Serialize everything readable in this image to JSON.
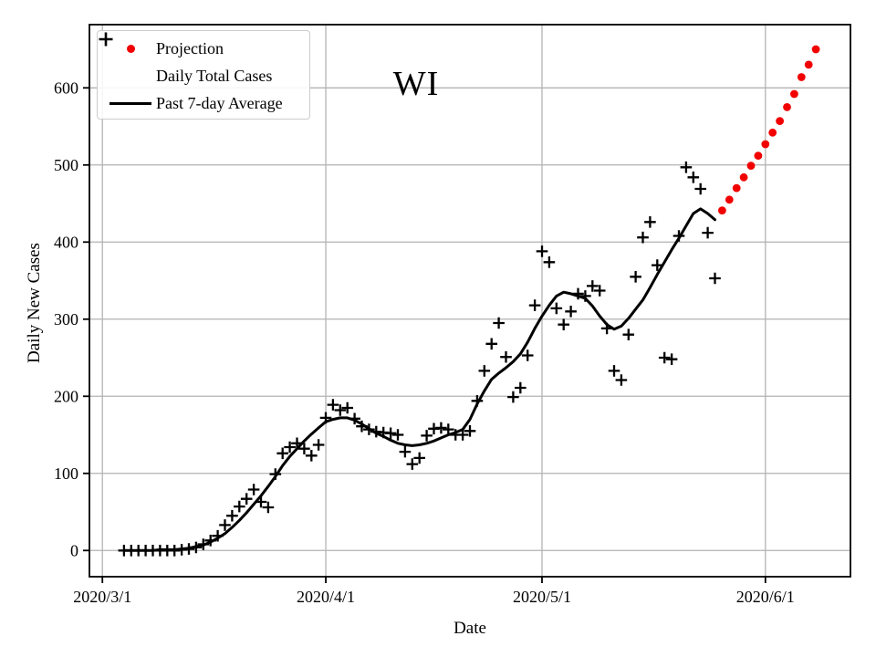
{
  "title": "WI",
  "axes": {
    "xlabel": "Date",
    "ylabel": "Daily New Cases"
  },
  "legend": {
    "items": [
      {
        "label": "Projection",
        "marker": "dot"
      },
      {
        "label": "Daily Total Cases",
        "marker": "plus"
      },
      {
        "label": "Past 7-day Average",
        "marker": "line"
      }
    ]
  },
  "colors": {
    "projection_red": "#f20000",
    "series_black": "#000000",
    "grid": "#b3b3b3",
    "frame": "#000000",
    "legend_border": "#cccccc"
  },
  "chart_data": {
    "type": "scatter",
    "title": "WI",
    "xlabel": "Date",
    "ylabel": "Daily New Cases",
    "x_unit": "days since 2020/3/1",
    "grid": true,
    "legend_position": "upper left",
    "xlim": [
      -1.8,
      103.8
    ],
    "ylim": [
      -34,
      682
    ],
    "x_ticks": [
      {
        "day": 0,
        "label": "2020/3/1"
      },
      {
        "day": 31,
        "label": "2020/4/1"
      },
      {
        "day": 61,
        "label": "2020/5/1"
      },
      {
        "day": 92,
        "label": "2020/6/1"
      }
    ],
    "y_ticks": [
      0,
      100,
      200,
      300,
      400,
      500,
      600
    ],
    "series": [
      {
        "name": "Projection",
        "type": "scatter",
        "marker": "dot",
        "color": "#f20000",
        "points": [
          [
            86,
            441
          ],
          [
            87,
            455
          ],
          [
            88,
            470
          ],
          [
            89,
            484
          ],
          [
            90,
            499
          ],
          [
            91,
            512
          ],
          [
            92,
            527
          ],
          [
            93,
            542
          ],
          [
            94,
            557
          ],
          [
            95,
            575
          ],
          [
            96,
            592
          ],
          [
            97,
            614
          ],
          [
            98,
            630
          ],
          [
            99,
            650
          ]
        ]
      },
      {
        "name": "Daily Total Cases",
        "type": "scatter",
        "marker": "plus",
        "color": "#000000",
        "points": [
          [
            3,
            0
          ],
          [
            4,
            0
          ],
          [
            5,
            0
          ],
          [
            6,
            0
          ],
          [
            7,
            0
          ],
          [
            8,
            0
          ],
          [
            9,
            0
          ],
          [
            10,
            0
          ],
          [
            11,
            1
          ],
          [
            12,
            2
          ],
          [
            13,
            4
          ],
          [
            14,
            8
          ],
          [
            15,
            13
          ],
          [
            16,
            19
          ],
          [
            17,
            33
          ],
          [
            18,
            45
          ],
          [
            19,
            57
          ],
          [
            20,
            67
          ],
          [
            21,
            79
          ],
          [
            22,
            63
          ],
          [
            23,
            56
          ],
          [
            24,
            99
          ],
          [
            25,
            126
          ],
          [
            26,
            134
          ],
          [
            27,
            139
          ],
          [
            28,
            132
          ],
          [
            29,
            123
          ],
          [
            30,
            137
          ],
          [
            31,
            172
          ],
          [
            32,
            189
          ],
          [
            33,
            182
          ],
          [
            34,
            185
          ],
          [
            35,
            171
          ],
          [
            36,
            161
          ],
          [
            37,
            157
          ],
          [
            38,
            154
          ],
          [
            39,
            153
          ],
          [
            40,
            152
          ],
          [
            41,
            150
          ],
          [
            42,
            128
          ],
          [
            43,
            112
          ],
          [
            44,
            120
          ],
          [
            45,
            149
          ],
          [
            46,
            158
          ],
          [
            47,
            159
          ],
          [
            48,
            157
          ],
          [
            49,
            150
          ],
          [
            50,
            150
          ],
          [
            51,
            155
          ],
          [
            52,
            194
          ],
          [
            53,
            233
          ],
          [
            54,
            268
          ],
          [
            55,
            295
          ],
          [
            56,
            251
          ],
          [
            57,
            199
          ],
          [
            58,
            211
          ],
          [
            59,
            253
          ],
          [
            60,
            318
          ],
          [
            61,
            388
          ],
          [
            62,
            374
          ],
          [
            63,
            314
          ],
          [
            64,
            293
          ],
          [
            65,
            310
          ],
          [
            66,
            333
          ],
          [
            67,
            330
          ],
          [
            68,
            343
          ],
          [
            69,
            337
          ],
          [
            70,
            288
          ],
          [
            71,
            233
          ],
          [
            72,
            221
          ],
          [
            73,
            280
          ],
          [
            74,
            355
          ],
          [
            75,
            406
          ],
          [
            76,
            426
          ],
          [
            77,
            370
          ],
          [
            78,
            250
          ],
          [
            79,
            248
          ],
          [
            80,
            408
          ],
          [
            81,
            497
          ],
          [
            82,
            484
          ],
          [
            83,
            469
          ],
          [
            84,
            412
          ],
          [
            85,
            353
          ]
        ]
      },
      {
        "name": "Past 7-day Average",
        "type": "line",
        "color": "#000000",
        "points": [
          [
            3,
            0
          ],
          [
            4,
            0
          ],
          [
            5,
            0
          ],
          [
            6,
            0
          ],
          [
            7,
            0
          ],
          [
            8,
            1
          ],
          [
            9,
            1
          ],
          [
            10,
            1
          ],
          [
            11,
            2
          ],
          [
            12,
            3
          ],
          [
            13,
            5
          ],
          [
            14,
            7
          ],
          [
            15,
            11
          ],
          [
            16,
            16
          ],
          [
            17,
            22
          ],
          [
            18,
            30
          ],
          [
            19,
            39
          ],
          [
            20,
            49
          ],
          [
            21,
            60
          ],
          [
            22,
            71
          ],
          [
            23,
            83
          ],
          [
            24,
            96
          ],
          [
            25,
            110
          ],
          [
            26,
            122
          ],
          [
            27,
            132
          ],
          [
            28,
            142
          ],
          [
            29,
            151
          ],
          [
            30,
            159
          ],
          [
            31,
            167
          ],
          [
            32,
            170
          ],
          [
            33,
            172
          ],
          [
            34,
            172
          ],
          [
            35,
            169
          ],
          [
            36,
            164
          ],
          [
            37,
            158
          ],
          [
            38,
            152
          ],
          [
            39,
            148
          ],
          [
            40,
            143
          ],
          [
            41,
            139
          ],
          [
            42,
            137
          ],
          [
            43,
            136
          ],
          [
            44,
            137
          ],
          [
            45,
            139
          ],
          [
            46,
            142
          ],
          [
            47,
            146
          ],
          [
            48,
            150
          ],
          [
            49,
            153
          ],
          [
            50,
            157
          ],
          [
            51,
            170
          ],
          [
            52,
            190
          ],
          [
            53,
            207
          ],
          [
            54,
            222
          ],
          [
            55,
            230
          ],
          [
            56,
            237
          ],
          [
            57,
            245
          ],
          [
            58,
            255
          ],
          [
            59,
            270
          ],
          [
            60,
            288
          ],
          [
            61,
            304
          ],
          [
            62,
            318
          ],
          [
            63,
            330
          ],
          [
            64,
            335
          ],
          [
            65,
            333
          ],
          [
            66,
            330
          ],
          [
            67,
            327
          ],
          [
            68,
            317
          ],
          [
            69,
            304
          ],
          [
            70,
            293
          ],
          [
            71,
            287
          ],
          [
            72,
            291
          ],
          [
            73,
            301
          ],
          [
            74,
            313
          ],
          [
            75,
            325
          ],
          [
            76,
            341
          ],
          [
            77,
            358
          ],
          [
            78,
            374
          ],
          [
            79,
            390
          ],
          [
            80,
            405
          ],
          [
            81,
            421
          ],
          [
            82,
            437
          ],
          [
            83,
            443
          ],
          [
            84,
            437
          ],
          [
            85,
            429
          ]
        ]
      }
    ]
  }
}
